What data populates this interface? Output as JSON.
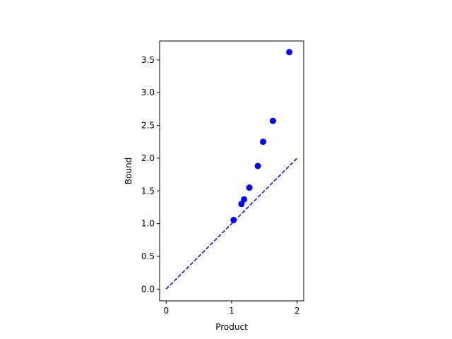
{
  "chart_data": {
    "type": "scatter",
    "xlabel": "Product",
    "ylabel": "Bound",
    "xlim": [
      -0.1,
      2.1
    ],
    "ylim": [
      -0.18,
      3.79
    ],
    "xticks": [
      0,
      1,
      2
    ],
    "yticks": [
      {
        "value": 0,
        "label": "0.0"
      },
      {
        "value": 0.5,
        "label": "0.5"
      },
      {
        "value": 1,
        "label": "1.0"
      },
      {
        "value": 1.5,
        "label": "1.5"
      },
      {
        "value": 2,
        "label": "2.0"
      },
      {
        "value": 2.5,
        "label": "2.5"
      },
      {
        "value": 3,
        "label": "3.0"
      },
      {
        "value": 3.5,
        "label": "3.5"
      }
    ],
    "grid": false,
    "series": [
      {
        "type": "scatter",
        "color": "#0000ff",
        "x": [
          1.03,
          1.15,
          1.19,
          1.27,
          1.4,
          1.48,
          1.63,
          1.88
        ],
        "y": [
          1.055,
          1.3,
          1.37,
          1.55,
          1.88,
          2.25,
          2.57,
          3.62
        ]
      },
      {
        "type": "line",
        "color": "#0000ff",
        "dashed": true,
        "x": [
          0,
          2
        ],
        "y": [
          0,
          2
        ]
      }
    ]
  }
}
